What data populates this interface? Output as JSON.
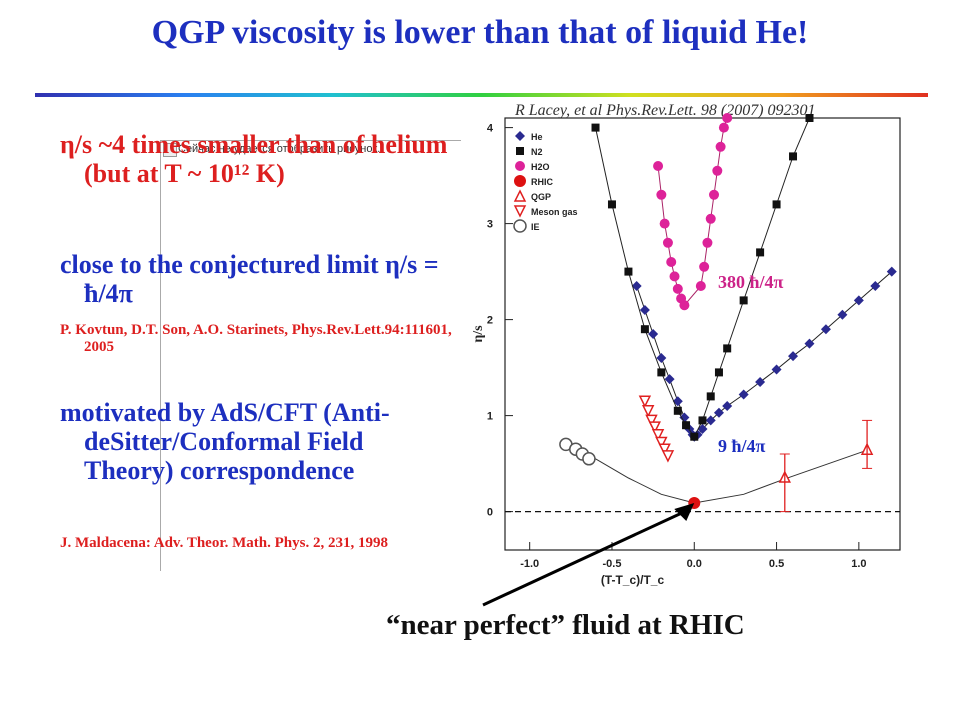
{
  "slide": {
    "title": "QGP viscosity is lower than that of liquid He!",
    "bullets": {
      "b1": "η/s ~4 times smaller than of helium (but at T ~ 10¹² K)",
      "b2": "close to the conjectured limit η/s = ħ/4π",
      "ref1": "P. Kovtun, D.T. Son, A.O. Starinets, Phys.Rev.Lett.94:111601, 2005",
      "b3": "motivated by AdS/CFT (Anti-deSitter/Conformal Field Theory) correspondence",
      "ref2": "J. Maldacena: Adv. Theor. Math. Phys. 2, 231, 1998"
    },
    "placeholder_text": "Сейчас не удается отобразить рисунок.",
    "citation": "R Lacey, et al Phys.Rev.Lett. 98 (2007) 092301",
    "annotation_380": "380 ħ/4π",
    "annotation_9": "9 ħ/4π",
    "footer_label": "“near perfect” fluid at RHIC"
  },
  "chart_data": {
    "type": "scatter",
    "xlabel": "(T-T_c)/T_c",
    "ylabel": "η/s",
    "xlim": [
      -1.15,
      1.25
    ],
    "ylim": [
      -0.4,
      4.1
    ],
    "x_ticks": [
      "-1.0",
      "-0.5",
      "0.0",
      "0.5",
      "1.0"
    ],
    "y_ticks": [
      "0",
      "1",
      "2",
      "3",
      "4"
    ],
    "legend_position": "top-left",
    "legend": [
      "He",
      "N2",
      "H2O",
      "RHIC",
      "QGP",
      "Meson gas",
      "IE"
    ],
    "series": [
      {
        "name": "He",
        "marker": "diamond",
        "color": "#2a2a90",
        "x": [
          -0.35,
          -0.3,
          -0.25,
          -0.2,
          -0.15,
          -0.1,
          -0.06,
          -0.03,
          -0.01,
          0.0,
          0.02,
          0.05,
          0.1,
          0.15,
          0.2,
          0.3,
          0.4,
          0.5,
          0.6,
          0.7,
          0.8,
          0.9,
          1.0,
          1.1,
          1.2
        ],
        "y": [
          2.35,
          2.1,
          1.85,
          1.6,
          1.38,
          1.15,
          0.98,
          0.86,
          0.8,
          0.78,
          0.8,
          0.86,
          0.95,
          1.03,
          1.1,
          1.22,
          1.35,
          1.48,
          1.62,
          1.75,
          1.9,
          2.05,
          2.2,
          2.35,
          2.5
        ]
      },
      {
        "name": "N2",
        "marker": "square",
        "color": "#111111",
        "x": [
          -0.6,
          -0.5,
          -0.4,
          -0.3,
          -0.2,
          -0.1,
          -0.05,
          0.0,
          0.05,
          0.1,
          0.15,
          0.2,
          0.3,
          0.4,
          0.5,
          0.6,
          0.7
        ],
        "y": [
          4.0,
          3.2,
          2.5,
          1.9,
          1.45,
          1.05,
          0.9,
          0.78,
          0.95,
          1.2,
          1.45,
          1.7,
          2.2,
          2.7,
          3.2,
          3.7,
          4.1
        ]
      },
      {
        "name": "H2O",
        "marker": "circle",
        "color": "#dd2299",
        "x": [
          -0.22,
          -0.2,
          -0.18,
          -0.16,
          -0.14,
          -0.12,
          -0.1,
          -0.08,
          -0.06,
          0.04,
          0.06,
          0.08,
          0.1,
          0.12,
          0.14,
          0.16,
          0.18,
          0.2
        ],
        "y": [
          3.6,
          3.3,
          3.0,
          2.8,
          2.6,
          2.45,
          2.32,
          2.22,
          2.15,
          2.35,
          2.55,
          2.8,
          3.05,
          3.3,
          3.55,
          3.8,
          4.0,
          4.1
        ]
      },
      {
        "name": "RHIC",
        "marker": "hexagon",
        "color": "#dd1111",
        "x": [
          0.0
        ],
        "y": [
          0.09
        ]
      },
      {
        "name": "QGP",
        "marker": "triangle-up",
        "color": "#e02020",
        "x": [
          0.55,
          1.05
        ],
        "y": [
          0.36,
          0.65
        ]
      },
      {
        "name": "Meson gas",
        "marker": "triangle-down",
        "color": "#e02020",
        "x": [
          -0.3,
          -0.28,
          -0.26,
          -0.24,
          -0.22,
          -0.2,
          -0.18,
          -0.16
        ],
        "y": [
          1.15,
          1.05,
          0.95,
          0.88,
          0.8,
          0.72,
          0.65,
          0.58
        ]
      },
      {
        "name": "IE",
        "marker": "hexagon-open",
        "color": "#555555",
        "x": [
          -0.78,
          -0.72,
          -0.68,
          -0.64
        ],
        "y": [
          0.7,
          0.65,
          0.6,
          0.55
        ]
      }
    ],
    "reference_line_y": 0
  }
}
